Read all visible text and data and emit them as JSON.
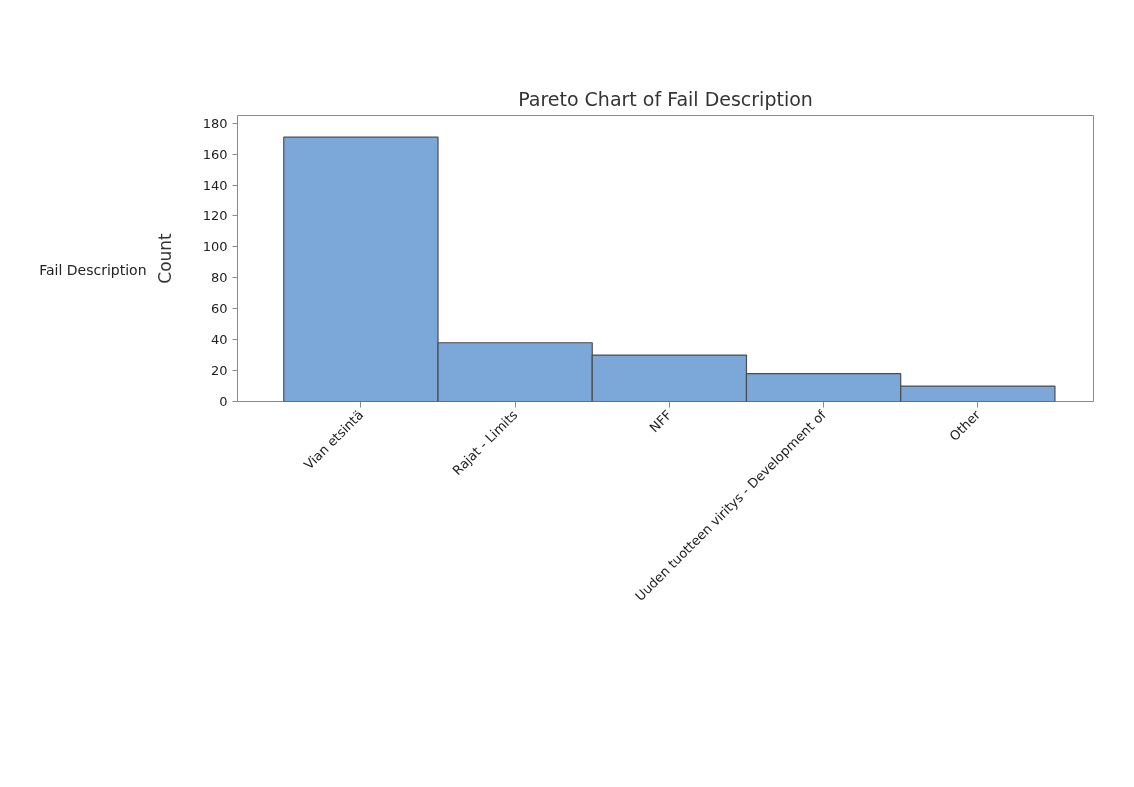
{
  "chart_data": {
    "type": "bar",
    "title": "Pareto Chart of Fail Description",
    "xlabel": "Fail Description",
    "ylabel": "Count",
    "categories": [
      "Vian etsintä",
      "Rajat - Limits",
      "NFF",
      "Uuden tuotteen viritys - Development of",
      "Other"
    ],
    "values": [
      171,
      38,
      30,
      18,
      10
    ],
    "color": "#7ba7d9",
    "ylim": [
      0,
      185
    ],
    "yticks": [
      0,
      20,
      40,
      60,
      80,
      100,
      120,
      140,
      160,
      180
    ]
  }
}
